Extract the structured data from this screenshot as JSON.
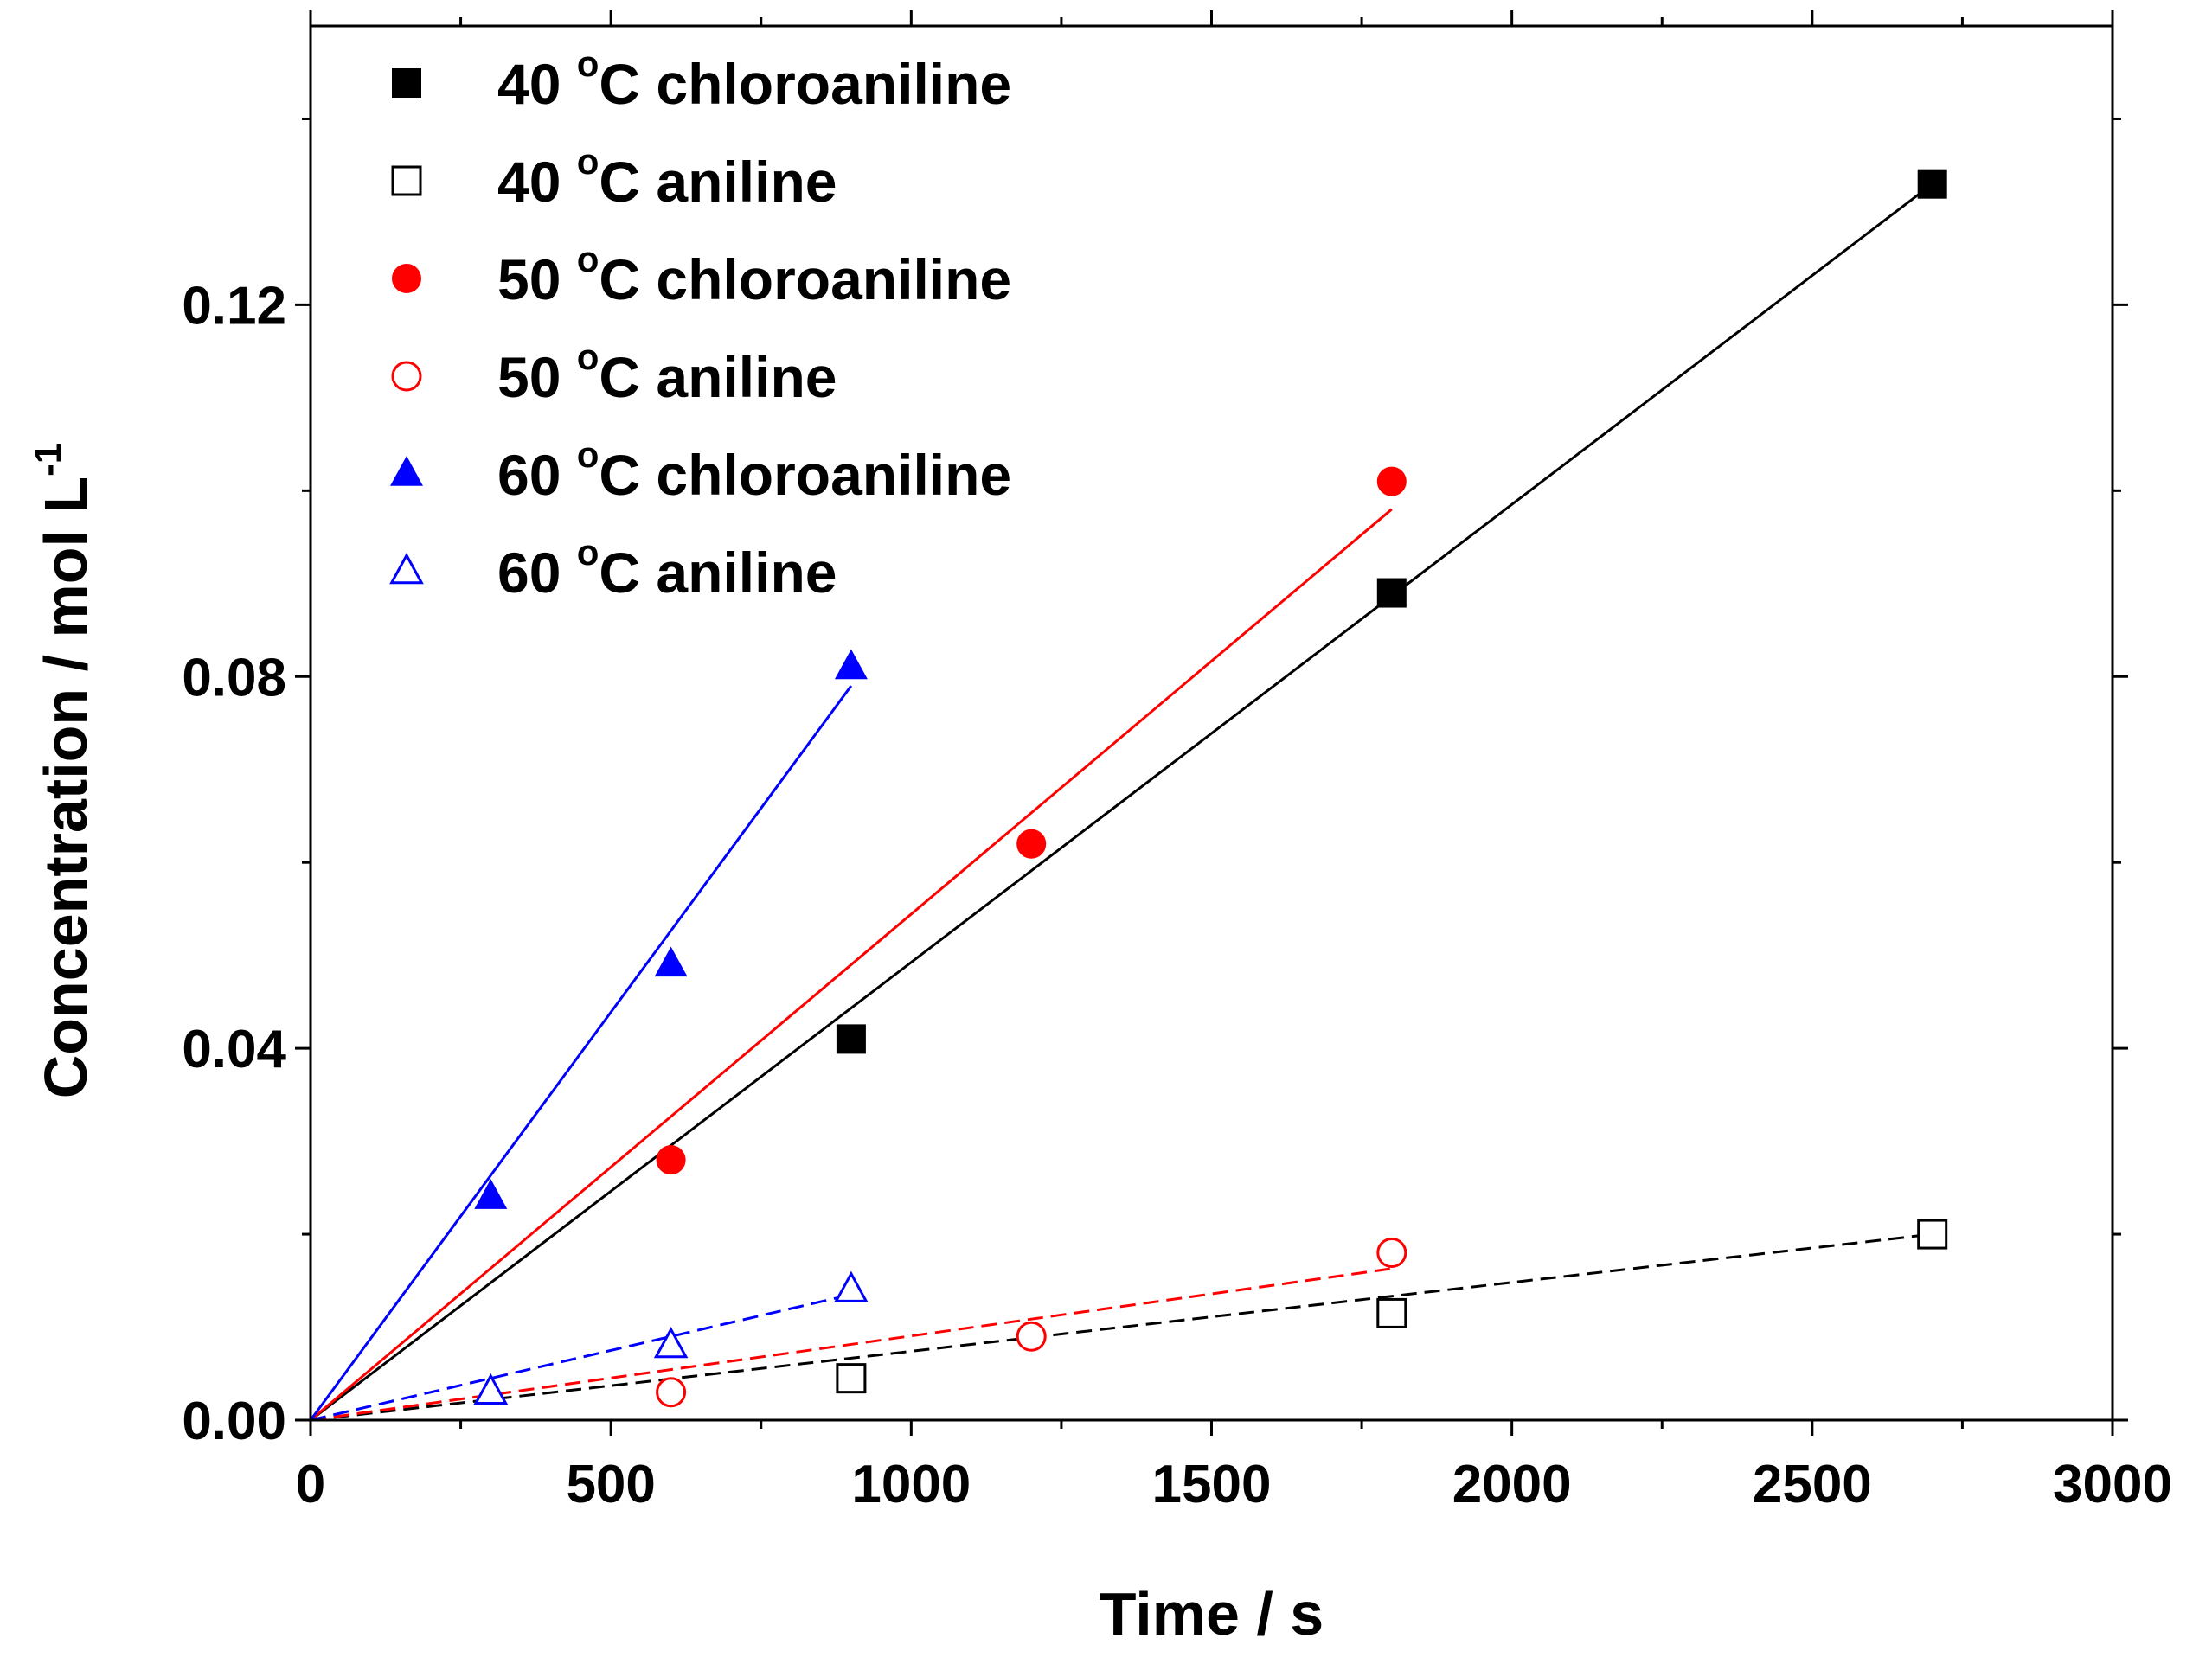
{
  "chart_data": {
    "type": "scatter",
    "title": "",
    "xlabel": "Time / s",
    "ylabel_main": "Concentration / mol L",
    "ylabel_sup": "-1",
    "xlim": [
      0,
      3000
    ],
    "ylim": [
      0,
      0.15
    ],
    "xticks": [
      0,
      500,
      1000,
      1500,
      2000,
      2500,
      3000
    ],
    "xtick_labels": [
      "0",
      "500",
      "1000",
      "1500",
      "2000",
      "2500",
      "3000"
    ],
    "yticks": [
      0.0,
      0.04,
      0.08,
      0.12
    ],
    "ytick_labels": [
      "0.00",
      "0.04",
      "0.08",
      "0.12"
    ],
    "legend_position": "top-left",
    "series": [
      {
        "name_prefix": "40 ",
        "name_sup": "o",
        "name_suffix": "C chloroaniline",
        "color": "#000000",
        "marker": "square",
        "filled": true,
        "line": "solid",
        "x": [
          0,
          900,
          1800,
          2700
        ],
        "y": [
          0.0,
          0.041,
          0.089,
          0.133
        ],
        "fit": [
          [
            0,
            0.0
          ],
          [
            2700,
            0.133
          ]
        ]
      },
      {
        "name_prefix": "40 ",
        "name_sup": "o",
        "name_suffix": "C aniline",
        "color": "#000000",
        "marker": "square",
        "filled": false,
        "line": "dashed",
        "x": [
          0,
          900,
          1800,
          2700
        ],
        "y": [
          0.0,
          0.0045,
          0.0115,
          0.02
        ],
        "fit": [
          [
            0,
            0.0
          ],
          [
            2700,
            0.02
          ]
        ]
      },
      {
        "name_prefix": "50 ",
        "name_sup": "o",
        "name_suffix": "C chloroaniline",
        "color": "#ff0000",
        "marker": "circle",
        "filled": true,
        "line": "solid",
        "x": [
          0,
          600,
          1200,
          1800
        ],
        "y": [
          0.0,
          0.028,
          0.062,
          0.101
        ],
        "fit": [
          [
            0,
            0.0
          ],
          [
            1800,
            0.098
          ]
        ]
      },
      {
        "name_prefix": "50 ",
        "name_sup": "o",
        "name_suffix": "C aniline",
        "color": "#ff0000",
        "marker": "circle",
        "filled": false,
        "line": "dashed",
        "x": [
          0,
          600,
          1200,
          1800
        ],
        "y": [
          0.0,
          0.003,
          0.009,
          0.018
        ],
        "fit": [
          [
            0,
            0.0
          ],
          [
            1800,
            0.0163
          ]
        ]
      },
      {
        "name_prefix": "60 ",
        "name_sup": "o",
        "name_suffix": "C chloroaniline",
        "color": "#0000ff",
        "marker": "triangle",
        "filled": true,
        "line": "solid",
        "x": [
          0,
          300,
          600,
          900
        ],
        "y": [
          0.0,
          0.024,
          0.049,
          0.081
        ],
        "fit": [
          [
            0,
            0.0
          ],
          [
            900,
            0.079
          ]
        ]
      },
      {
        "name_prefix": "60 ",
        "name_sup": "o",
        "name_suffix": "C aniline",
        "color": "#0000ff",
        "marker": "triangle",
        "filled": false,
        "line": "dashed",
        "x": [
          0,
          300,
          600,
          900
        ],
        "y": [
          0.0,
          0.003,
          0.008,
          0.014
        ],
        "fit": [
          [
            0,
            0.0
          ],
          [
            900,
            0.0135
          ]
        ]
      }
    ]
  }
}
